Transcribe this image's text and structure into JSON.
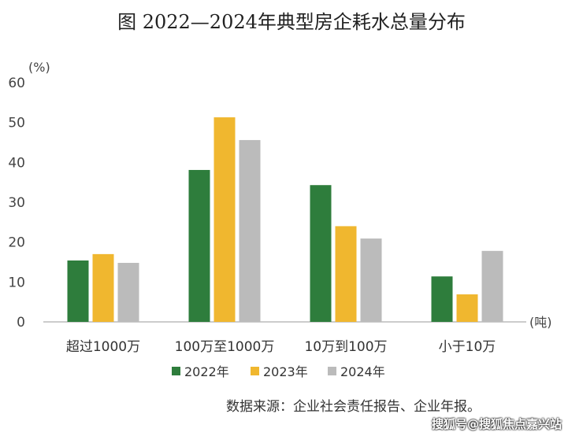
{
  "chart_data": {
    "type": "bar",
    "title": "图   2022—2024年典型房企耗水总量分布",
    "ylabel": "(%)",
    "xlabel": "(吨)",
    "ylim": [
      0,
      60
    ],
    "yticks": [
      0,
      10,
      20,
      30,
      40,
      50,
      60
    ],
    "categories": [
      "超过1000万",
      "100万至1000万",
      "10万到100万",
      "小于10万"
    ],
    "series": [
      {
        "name": "2022年",
        "color": "#2e7d3c",
        "values": [
          15.4,
          38.1,
          34.3,
          11.4
        ]
      },
      {
        "name": "2023年",
        "color": "#f0b72f",
        "values": [
          17.0,
          51.3,
          24.0,
          6.9
        ]
      },
      {
        "name": "2024年",
        "color": "#bbbbbb",
        "values": [
          14.8,
          45.6,
          20.9,
          17.8
        ]
      }
    ],
    "legend_position": "bottom",
    "grid": false
  },
  "source": "数据来源：企业社会责任报告、企业年报。",
  "watermark": "搜狐号@搜狐焦点嘉兴站"
}
